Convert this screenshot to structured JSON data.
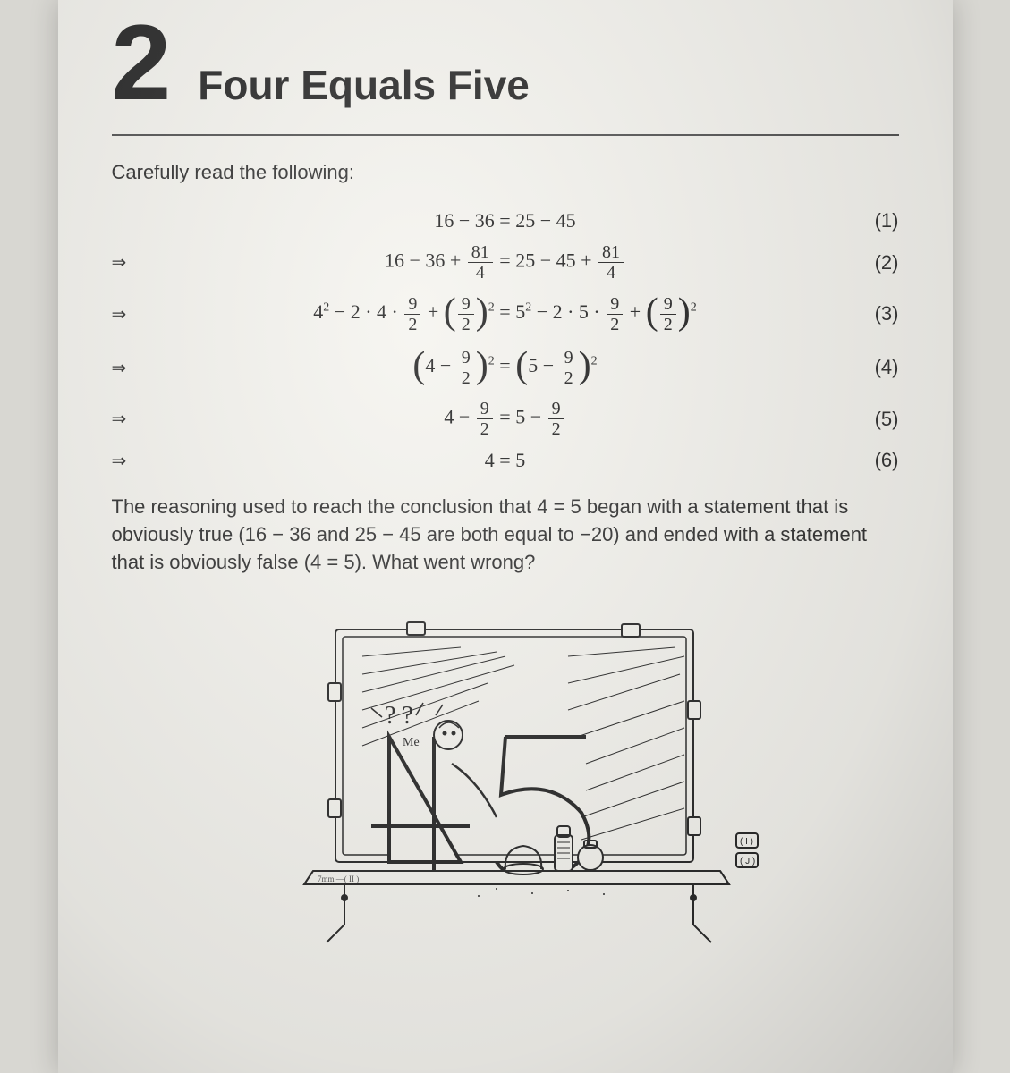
{
  "chapter": {
    "number": "2",
    "title": "Four Equals Five"
  },
  "intro": "Carefully read the following:",
  "equations": [
    {
      "arrow": "",
      "html": "16 − 36 = 25 − 45",
      "num": "(1)"
    },
    {
      "arrow": "⇒",
      "html": "16 − 36 + <span class='frac'><span class='top'>81</span><span class='bot'>4</span></span> = 25 − 45 + <span class='frac'><span class='top'>81</span><span class='bot'>4</span></span>",
      "num": "(2)"
    },
    {
      "arrow": "⇒",
      "html": "4<span class='sup'>2</span> − 2 · 4 · <span class='frac'><span class='top'>9</span><span class='bot'>2</span></span> + <span class='big-paren'>(</span><span class='frac'><span class='top'>9</span><span class='bot'>2</span></span><span class='big-paren'>)</span><span class='sup'>2</span> = 5<span class='sup'>2</span> − 2 · 5 · <span class='frac'><span class='top'>9</span><span class='bot'>2</span></span> + <span class='big-paren'>(</span><span class='frac'><span class='top'>9</span><span class='bot'>2</span></span><span class='big-paren'>)</span><span class='sup'>2</span>",
      "num": "(3)"
    },
    {
      "arrow": "⇒",
      "html": "<span class='big-paren'>(</span>4 − <span class='frac'><span class='top'>9</span><span class='bot'>2</span></span><span class='big-paren'>)</span><span class='sup'>2</span> = <span class='big-paren'>(</span>5 − <span class='frac'><span class='top'>9</span><span class='bot'>2</span></span><span class='big-paren'>)</span><span class='sup'>2</span>",
      "num": "(4)"
    },
    {
      "arrow": "⇒",
      "html": "4 − <span class='frac'><span class='top'>9</span><span class='bot'>2</span></span> = 5 − <span class='frac'><span class='top'>9</span><span class='bot'>2</span></span>",
      "num": "(5)"
    },
    {
      "arrow": "⇒",
      "html": "4 = 5",
      "num": "(6)"
    }
  ],
  "conclusion": "The reasoning used to reach the conclusion that 4 = 5 began with a statement that is obviously true (16 − 36 and 25 − 45 are both equal to −20) and ended with a statement that is obviously false (4 = 5). What went wrong?",
  "illustration": {
    "big4": "4",
    "big5": "5",
    "qmarks": "? ?",
    "me": "Me",
    "stroke": "#2a2a2a"
  }
}
